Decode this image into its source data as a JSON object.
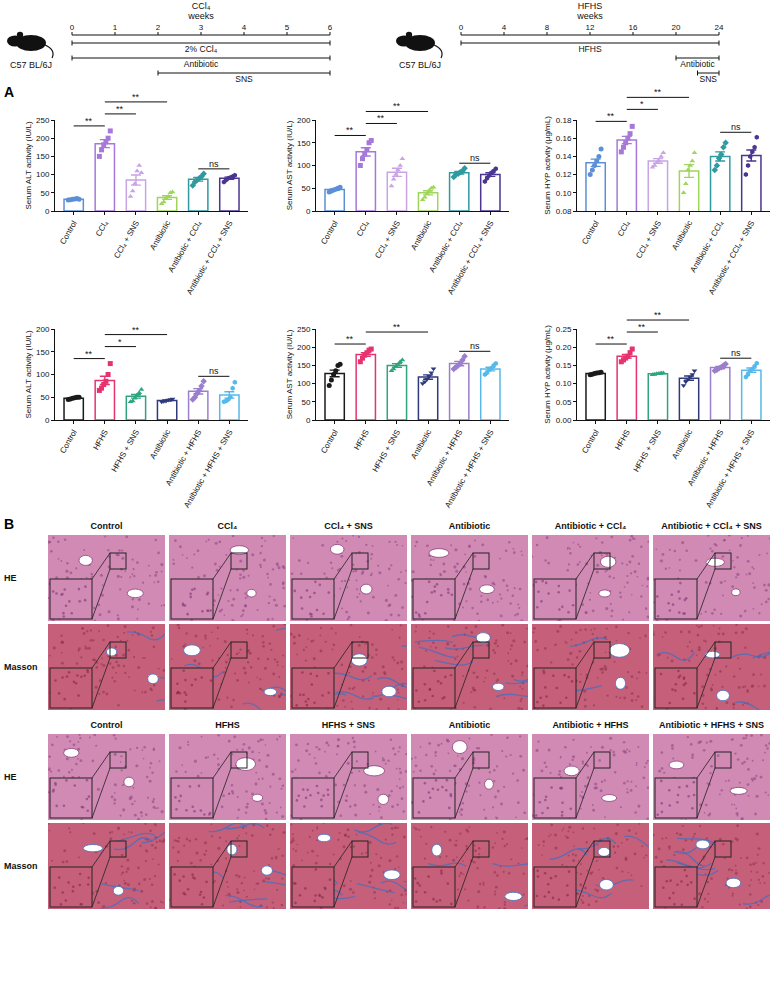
{
  "timelines": [
    {
      "title": "CCl₄",
      "unit": "weeks",
      "strain": "C57 BL/6J",
      "range": [
        0,
        6
      ],
      "ticks": [
        0,
        1,
        2,
        3,
        4,
        5,
        6
      ],
      "bars": [
        {
          "label": "2% CCl₄",
          "start": 0,
          "end": 6
        },
        {
          "label": "Antibiotic",
          "start": 0,
          "end": 6
        },
        {
          "label": "SNS",
          "start": 2,
          "end": 6
        }
      ]
    },
    {
      "title": "HFHS",
      "unit": "weeks",
      "strain": "C57 BL/6J",
      "range": [
        0,
        24
      ],
      "ticks": [
        0,
        4,
        8,
        12,
        16,
        20,
        24
      ],
      "bars": [
        {
          "label": "HFHS",
          "start": 0,
          "end": 24
        },
        {
          "label": "Antibiotic",
          "start": 20,
          "end": 24
        },
        {
          "label": "SNS",
          "start": 22,
          "end": 24
        }
      ]
    }
  ],
  "chart_label": "A",
  "chart_data": [
    {
      "type": "bar",
      "y_label": "Serum ALT activity (IU/L)",
      "categories": [
        "Control",
        "CCl₄",
        "CCl₄ + SNS",
        "Antibiotic",
        "Antibiotic + CCl₄",
        "Antibiotic + CCl₄ + SNS"
      ],
      "values": [
        32,
        185,
        85,
        37,
        87,
        90
      ],
      "errors": [
        1,
        11,
        14,
        5,
        5,
        3
      ],
      "points": [
        [
          30,
          31,
          32,
          33,
          34,
          32
        ],
        [
          150,
          168,
          182,
          190,
          200,
          220
        ],
        [
          40,
          55,
          75,
          110,
          125,
          105
        ],
        [
          20,
          25,
          35,
          40,
          50,
          52
        ],
        [
          70,
          80,
          85,
          90,
          95,
          102
        ],
        [
          80,
          85,
          90,
          92,
          95,
          98
        ]
      ],
      "colors": [
        "#5b8fd6",
        "#a678d9",
        "#c9a3e6",
        "#9fd55a",
        "#2f9aa0",
        "#4a3590"
      ],
      "markers": [
        "circle",
        "square",
        "triangle-up",
        "triangle-up",
        "diamond",
        "hexagon"
      ],
      "ylim": [
        0,
        250
      ],
      "yticks": [
        0,
        50,
        100,
        150,
        200,
        250
      ],
      "brackets": [
        {
          "between": [
            "Control",
            "CCl₄"
          ],
          "label": "**"
        },
        {
          "between": [
            "CCl₄",
            "CCl₄ + SNS"
          ],
          "label": "**"
        },
        {
          "between": [
            "CCl₄",
            "Antibiotic"
          ],
          "label": "**"
        },
        {
          "between": [
            "Antibiotic + CCl₄",
            "Antibiotic + CCl₄ + SNS"
          ],
          "label": "ns"
        }
      ]
    },
    {
      "type": "bar",
      "y_label": "Serum AST activity (IU/L)",
      "categories": [
        "Control",
        "CCl₄",
        "CCl₄ + SNS",
        "Antibiotic",
        "Antibiotic + CCl₄",
        "Antibiotic + CCl₄ + SNS"
      ],
      "values": [
        47,
        130,
        85,
        40,
        84,
        80
      ],
      "errors": [
        1.5,
        9,
        9,
        4.5,
        3,
        4
      ],
      "points": [
        [
          42,
          44,
          46,
          48,
          50,
          52
        ],
        [
          100,
          115,
          125,
          135,
          150,
          155
        ],
        [
          55,
          70,
          80,
          90,
          100,
          115
        ],
        [
          25,
          30,
          38,
          45,
          50,
          52
        ],
        [
          75,
          80,
          82,
          85,
          88,
          94
        ],
        [
          65,
          72,
          78,
          84,
          88,
          93
        ]
      ],
      "colors": [
        "#5b8fd6",
        "#a678d9",
        "#c9a3e6",
        "#9fd55a",
        "#2f9aa0",
        "#4a3590"
      ],
      "markers": [
        "circle",
        "square",
        "triangle-up",
        "triangle-up",
        "diamond",
        "hexagon"
      ],
      "ylim": [
        0,
        200
      ],
      "yticks": [
        0,
        50,
        100,
        150,
        200
      ],
      "brackets": [
        {
          "between": [
            "Control",
            "CCl₄"
          ],
          "label": "**"
        },
        {
          "between": [
            "CCl₄",
            "CCl₄ + SNS"
          ],
          "label": "**"
        },
        {
          "between": [
            "CCl₄",
            "Antibiotic"
          ],
          "label": "**"
        },
        {
          "between": [
            "Antibiotic + CCl₄",
            "Antibiotic + CCl₄ + SNS"
          ],
          "label": "ns"
        }
      ]
    },
    {
      "type": "bar",
      "y_label": "Serum HYP activity (μg/mL)",
      "categories": [
        "Control",
        "CCl₄",
        "CCl₄ + SNS",
        "Antibiotic",
        "Antibiotic + CCl₄",
        "Antibiotic + CCl₄ + SNS"
      ],
      "values": [
        0.133,
        0.158,
        0.135,
        0.124,
        0.14,
        0.141
      ],
      "errors": [
        0.004,
        0.004,
        0.0025,
        0.007,
        0.005,
        0.006
      ],
      "points": [
        [
          0.12,
          0.125,
          0.13,
          0.135,
          0.14,
          0.148
        ],
        [
          0.145,
          0.15,
          0.155,
          0.16,
          0.165,
          0.173
        ],
        [
          0.128,
          0.13,
          0.133,
          0.135,
          0.14,
          0.144
        ],
        [
          0.1,
          0.11,
          0.125,
          0.13,
          0.135,
          0.144
        ],
        [
          0.125,
          0.13,
          0.138,
          0.142,
          0.15,
          0.155
        ],
        [
          0.12,
          0.13,
          0.14,
          0.145,
          0.15,
          0.161
        ]
      ],
      "colors": [
        "#5b8fd6",
        "#a678d9",
        "#c9a3e6",
        "#9fd55a",
        "#2f9aa0",
        "#4a3590"
      ],
      "markers": [
        "circle",
        "square",
        "triangle-up",
        "triangle-up",
        "diamond",
        "hexagon"
      ],
      "ylim": [
        0.08,
        0.18
      ],
      "yticks": [
        0.08,
        {
          "value": 0.1,
          "label": "0.10"
        },
        0.12,
        0.14,
        0.16,
        0.18
      ],
      "brackets": [
        {
          "between": [
            "Control",
            "CCl₄"
          ],
          "label": "**"
        },
        {
          "between": [
            "CCl₄",
            "CCl₄ + SNS"
          ],
          "label": "*"
        },
        {
          "between": [
            "CCl₄",
            "Antibiotic"
          ],
          "label": "**"
        },
        {
          "between": [
            "Antibiotic + CCl₄",
            "Antibiotic + CCl₄ + SNS"
          ],
          "label": "ns"
        }
      ]
    },
    {
      "type": "bar",
      "y_label": "Serum ALT activity (IU/L)",
      "categories": [
        "Control",
        "HFHS",
        "HFHS + SNS",
        "Antibiotic",
        "Antibiotic + HFHS",
        "Antibiotic + HFHS + SNS"
      ],
      "values": [
        48,
        87,
        52,
        43,
        63,
        55
      ],
      "errors": [
        1,
        9,
        4,
        1,
        6,
        7
      ],
      "points": [
        [
          45,
          46,
          48,
          49,
          50,
          50
        ],
        [
          65,
          70,
          78,
          85,
          100,
          124
        ],
        [
          40,
          42,
          48,
          55,
          60,
          67
        ],
        [
          40,
          41,
          42,
          44,
          45,
          46
        ],
        [
          45,
          50,
          58,
          65,
          75,
          85
        ],
        [
          40,
          42,
          45,
          50,
          70,
          83
        ]
      ],
      "colors": [
        "#1a1a1a",
        "#e6336f",
        "#2ea57f",
        "#2e3a7c",
        "#9b7fcc",
        "#56b9ea"
      ],
      "markers": [
        "circle",
        "square",
        "triangle-up",
        "triangle-down",
        "diamond",
        "hexagon"
      ],
      "ylim": [
        0,
        200
      ],
      "yticks": [
        0,
        50,
        100,
        150,
        200
      ],
      "brackets": [
        {
          "between": [
            "Control",
            "HFHS"
          ],
          "label": "**"
        },
        {
          "between": [
            "HFHS",
            "HFHS + SNS"
          ],
          "label": "*"
        },
        {
          "between": [
            "HFHS",
            "Antibiotic"
          ],
          "label": "**"
        },
        {
          "between": [
            "Antibiotic + HFHS",
            "Antibiotic + HFHS + SNS"
          ],
          "label": "ns"
        }
      ]
    },
    {
      "type": "bar",
      "y_label": "Serum AST activity (IU/L)",
      "categories": [
        "Control",
        "HFHS",
        "HFHS + SNS",
        "Antibiotic",
        "Antibiotic + HFHS",
        "Antibiotic + HFHS + SNS"
      ],
      "values": [
        128,
        180,
        150,
        118,
        155,
        140
      ],
      "errors": [
        9,
        5,
        5,
        6,
        6,
        5
      ],
      "points": [
        [
          95,
          110,
          125,
          135,
          150,
          153
        ],
        [
          160,
          170,
          178,
          185,
          192,
          195
        ],
        [
          135,
          140,
          148,
          152,
          160,
          165
        ],
        [
          100,
          105,
          112,
          120,
          130,
          141
        ],
        [
          140,
          145,
          150,
          155,
          165,
          175
        ],
        [
          125,
          130,
          138,
          142,
          150,
          155
        ]
      ],
      "colors": [
        "#1a1a1a",
        "#e6336f",
        "#2ea57f",
        "#2e3a7c",
        "#9b7fcc",
        "#56b9ea"
      ],
      "markers": [
        "circle",
        "square",
        "triangle-up",
        "triangle-down",
        "diamond",
        "hexagon"
      ],
      "ylim": [
        0,
        250
      ],
      "yticks": [
        0,
        50,
        100,
        150,
        200,
        250
      ],
      "brackets": [
        {
          "between": [
            "Control",
            "HFHS"
          ],
          "label": "**"
        },
        {
          "between": [
            "HFHS",
            "Antibiotic"
          ],
          "label": "**"
        },
        {
          "between": [
            "Antibiotic + HFHS",
            "Antibiotic + HFHS + SNS"
          ],
          "label": "ns"
        }
      ]
    },
    {
      "type": "bar",
      "y_label": "Serum HYP activity (μg/mL)",
      "categories": [
        "Control",
        "HFHS",
        "HFHS + SNS",
        "Antibiotic",
        "Antibiotic + HFHS",
        "Antibiotic + HFHS + SNS"
      ],
      "values": [
        0.128,
        0.175,
        0.127,
        0.115,
        0.144,
        0.137
      ],
      "errors": [
        0.001,
        0.005,
        0.001,
        0.006,
        0.003,
        0.006
      ],
      "points": [
        [
          0.124,
          0.126,
          0.128,
          0.129,
          0.13,
          0.131
        ],
        [
          0.16,
          0.165,
          0.17,
          0.175,
          0.185,
          0.195
        ],
        [
          0.124,
          0.125,
          0.127,
          0.128,
          0.129,
          0.129
        ],
        [
          0.095,
          0.105,
          0.112,
          0.118,
          0.125,
          0.135
        ],
        [
          0.135,
          0.138,
          0.142,
          0.145,
          0.15,
          0.154
        ],
        [
          0.118,
          0.125,
          0.135,
          0.14,
          0.148,
          0.156
        ]
      ],
      "colors": [
        "#1a1a1a",
        "#e6336f",
        "#2ea57f",
        "#2e3a7c",
        "#9b7fcc",
        "#56b9ea"
      ],
      "markers": [
        "circle",
        "square",
        "triangle-up",
        "triangle-down",
        "diamond",
        "hexagon"
      ],
      "ylim": [
        0,
        0.25
      ],
      "yticks": [
        {
          "value": 0,
          "label": "0.00"
        },
        0.05,
        {
          "value": 0.1,
          "label": "0.10"
        },
        0.15,
        {
          "value": 0.2,
          "label": "0.20"
        },
        0.25
      ],
      "brackets": [
        {
          "between": [
            "Control",
            "HFHS"
          ],
          "label": "**"
        },
        {
          "between": [
            "HFHS",
            "HFHS + SNS"
          ],
          "label": "**"
        },
        {
          "between": [
            "HFHS",
            "Antibiotic"
          ],
          "label": "**"
        },
        {
          "between": [
            "Antibiotic + HFHS",
            "Antibiotic + HFHS + SNS"
          ],
          "label": "ns"
        }
      ]
    }
  ],
  "histology": {
    "label": "B",
    "groups": [
      {
        "columns": [
          "Control",
          "CCl₄",
          "CCl₄ + SNS",
          "Antibiotic",
          "Antibiotic + CCl₄",
          "Antibiotic + CCl₄ + SNS"
        ],
        "rows": [
          "HE",
          "Masson"
        ]
      },
      {
        "columns": [
          "Control",
          "HFHS",
          "HFHS + SNS",
          "Antibiotic",
          "Antibiotic + HFHS",
          "Antibiotic + HFHS + SNS"
        ],
        "rows": [
          "HE",
          "Masson"
        ]
      }
    ]
  }
}
